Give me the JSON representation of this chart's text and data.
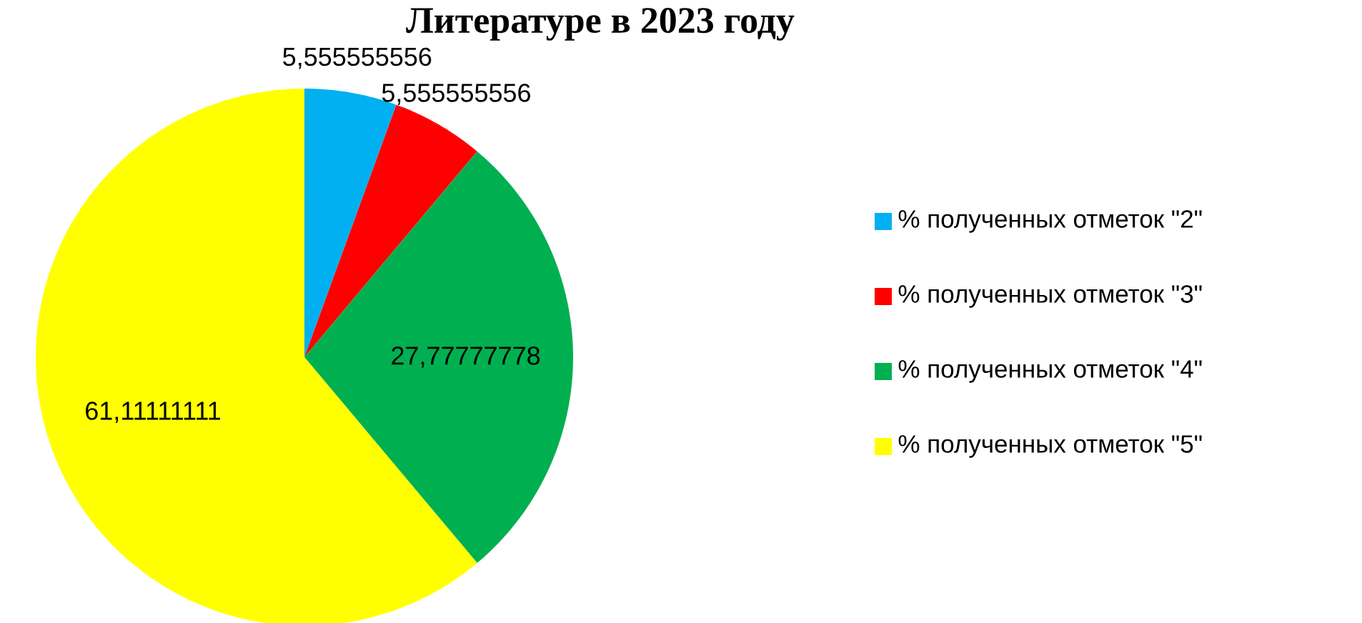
{
  "chart_data": {
    "type": "pie",
    "title": "Литературе в 2023 году",
    "categories": [
      "% полученных отметок \"2\"",
      "% полученных отметок \"3\"",
      "% полученных отметок \"4\"",
      "% полученных отметок \"5\""
    ],
    "values": [
      5.555555556,
      5.555555556,
      27.77777778,
      61.11111111
    ],
    "value_labels": [
      "5,555555556",
      "5,555555556",
      "27,77777778",
      "61,11111111"
    ],
    "colors": [
      "#00b0f0",
      "#ff0000",
      "#00b050",
      "#ffff00"
    ],
    "legend": "right"
  }
}
